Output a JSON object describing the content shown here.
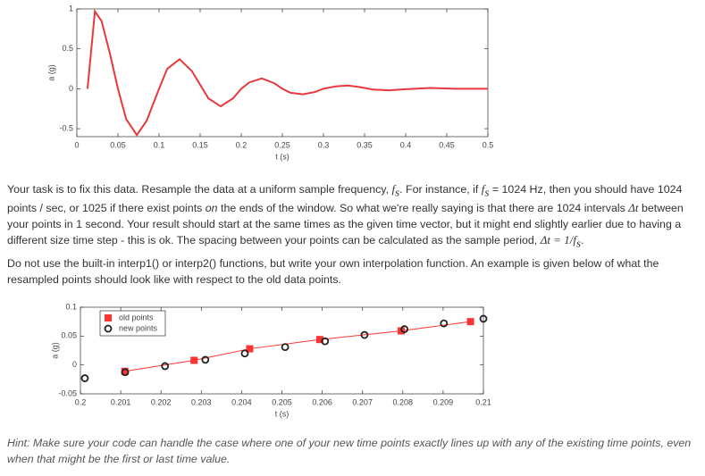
{
  "chart_data": [
    {
      "type": "line",
      "xlabel": "t (s)",
      "ylabel": "a (g)",
      "color": "#e8383d",
      "x": [
        0.013,
        0.022,
        0.03,
        0.04,
        0.05,
        0.06,
        0.073,
        0.085,
        0.1,
        0.11,
        0.125,
        0.14,
        0.15,
        0.16,
        0.175,
        0.19,
        0.2,
        0.21,
        0.225,
        0.24,
        0.25,
        0.26,
        0.275,
        0.29,
        0.3,
        0.315,
        0.33,
        0.345,
        0.36,
        0.38,
        0.4,
        0.43,
        0.46,
        0.5
      ],
      "values": [
        0,
        0.97,
        0.85,
        0.45,
        0,
        -0.38,
        -0.58,
        -0.4,
        0,
        0.25,
        0.37,
        0.22,
        0.05,
        -0.12,
        -0.22,
        -0.12,
        0,
        0.08,
        0.13,
        0.07,
        0,
        -0.05,
        -0.07,
        -0.04,
        0,
        0.03,
        0.04,
        0.02,
        -0.01,
        -0.02,
        -0.005,
        0.01,
        0,
        0
      ],
      "xlim": [
        0,
        0.5
      ],
      "xticks": [
        0,
        0.05,
        0.1,
        0.15,
        0.2,
        0.25,
        0.3,
        0.35,
        0.4,
        0.45,
        0.5
      ],
      "ylim": [
        -0.6,
        1
      ],
      "yticks": [
        -0.5,
        0,
        0.5,
        1
      ],
      "grid": false
    },
    {
      "type": "scatter",
      "xlabel": "t (s)",
      "ylabel": "a (g)",
      "legend": "upper left",
      "series": [
        {
          "name": "old points",
          "color": "#ff3333",
          "marker": "square",
          "line": true,
          "x": [
            0.2011,
            0.20282,
            0.2042,
            0.20594,
            0.20796,
            0.20968
          ],
          "values": [
            -0.011,
            0.008,
            0.028,
            0.044,
            0.059,
            0.075
          ]
        },
        {
          "name": "new points",
          "color": "#222222",
          "marker": "circle",
          "line": false,
          "x": [
            0.20011,
            0.20111,
            0.2021,
            0.2031,
            0.20408,
            0.20508,
            0.20607,
            0.20705,
            0.20804,
            0.20902,
            0.21
          ],
          "values": [
            -0.023,
            -0.0125,
            -0.002,
            0.009,
            0.02,
            0.031,
            0.041,
            0.052,
            0.062,
            0.072,
            0.08
          ]
        }
      ],
      "xlim": [
        0.2,
        0.21
      ],
      "xticks": [
        0.2,
        0.201,
        0.202,
        0.203,
        0.204,
        0.205,
        0.206,
        0.207,
        0.208,
        0.209,
        0.21
      ],
      "ylim": [
        -0.05,
        0.1
      ],
      "yticks": [
        -0.05,
        0,
        0.05,
        0.1
      ],
      "grid": false
    }
  ],
  "paragraphs": [
    [
      "Your task is to fix this data. Resample the data at a uniform sample frequency, ",
      "f",
      "s",
      ". For instance, if ",
      "f",
      "s",
      " = 1024 Hz, then you should have 1024 points / sec, or 1025 if there exist points ",
      "on",
      " the ends of the window. So what we're really saying is that there are 1024 intervals ",
      "Δt",
      " between your points in 1 second. Your result should start at the same times as the given time vector, but it might end slightly earlier due to having a different size time step - this is ok. The spacing between your points can be calculated as the sample period, ",
      "Δt",
      " = 1/",
      "f",
      "s",
      "."
    ],
    [
      "Do not use the built-in interp1() or interp2() functions, but write your own interpolation function. An example is given below of what the resampled points should look like with respect to the old data points."
    ]
  ],
  "hint": "Hint: Make sure your code can handle the case where one of your new time points exactly lines up with any of the existing time points, even when that might be the first or last time value."
}
